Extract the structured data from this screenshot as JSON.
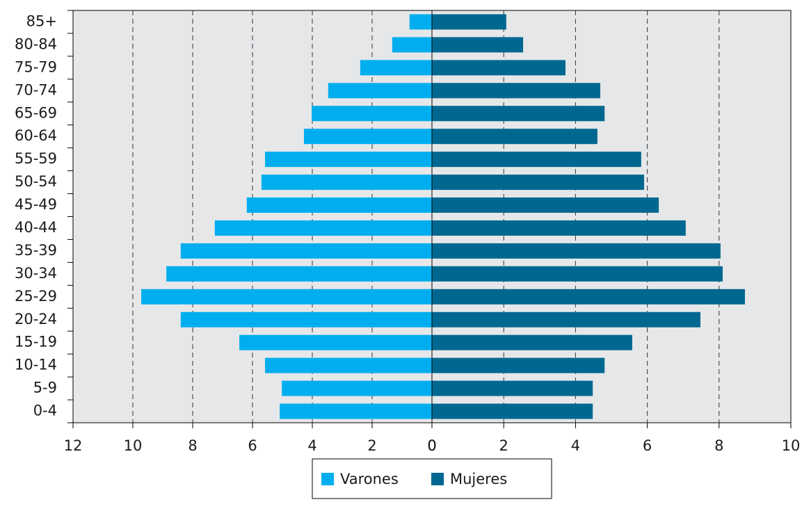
{
  "chart_data": {
    "type": "pyramid",
    "categories": [
      "0-4",
      "5-9",
      "10-14",
      "15-19",
      "20-24",
      "25-29",
      "30-34",
      "35-39",
      "40-44",
      "45-49",
      "50-54",
      "55-59",
      "60-64",
      "65-69",
      "70-74",
      "75-79",
      "80-84",
      "85+"
    ],
    "series": [
      {
        "name": "Varones",
        "color": "#00aeef",
        "axis": "x",
        "values": [
          5.09,
          5.02,
          5.58,
          6.44,
          8.4,
          9.72,
          8.88,
          8.4,
          7.26,
          6.19,
          5.7,
          5.58,
          4.28,
          4.02,
          3.47,
          2.4,
          1.33,
          0.75
        ]
      },
      {
        "name": "Mujeres",
        "color": "#006890",
        "axis": "x2",
        "values": [
          4.48,
          4.48,
          4.81,
          5.58,
          7.48,
          8.72,
          8.1,
          8.04,
          7.07,
          6.32,
          5.91,
          5.83,
          4.61,
          4.81,
          4.69,
          3.72,
          2.54,
          2.07
        ]
      }
    ],
    "xlim": [
      12,
      0
    ],
    "xticks": [
      12,
      10,
      8,
      6,
      4,
      2,
      0
    ],
    "x2lim": [
      0,
      10
    ],
    "x2ticks": [
      0,
      2,
      4,
      6,
      8,
      10
    ],
    "grid": true
  }
}
